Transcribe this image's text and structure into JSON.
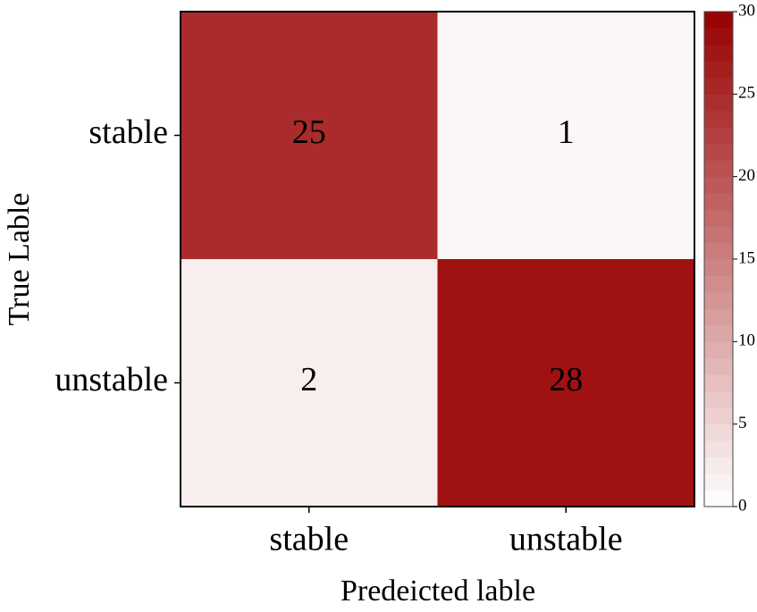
{
  "chart_data": {
    "type": "heatmap",
    "x_label": "Predeicted lable",
    "y_label": "True Lable",
    "x_categories": [
      "stable",
      "unstable"
    ],
    "y_categories": [
      "stable",
      "unstable"
    ],
    "values": [
      [
        25,
        1
      ],
      [
        2,
        28
      ]
    ],
    "colormap": [
      "#ffffff",
      "#990000"
    ],
    "clim": [
      0,
      30
    ],
    "cticks": [
      0,
      5,
      10,
      15,
      20,
      25,
      30
    ]
  }
}
